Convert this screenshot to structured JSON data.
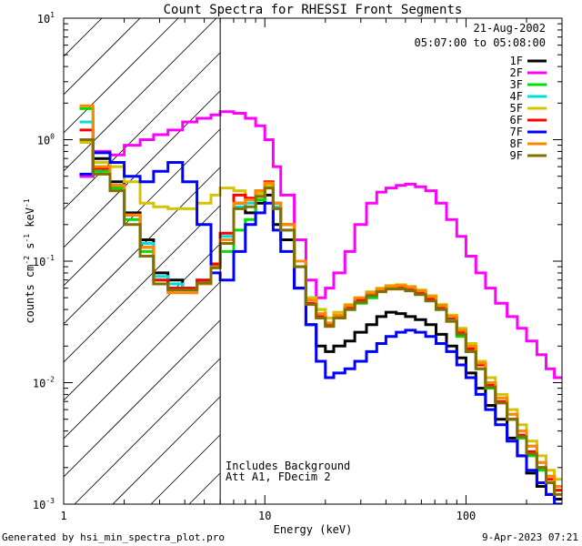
{
  "chart_data": {
    "type": "line",
    "title": "Count Spectra for RHESSI Front Segments",
    "xlabel": "Energy (keV)",
    "ylabel_base": "counts cm",
    "ylabel_parts": {
      "exp1": "-2",
      "mid": " s",
      "exp2": "-1",
      "unit": " keV",
      "exp3": "-1"
    },
    "x_scale": "log",
    "y_scale": "log",
    "xlim": [
      1,
      300
    ],
    "ylim": [
      0.001,
      10
    ],
    "x_ticks": [
      {
        "value": 1,
        "label": "1"
      },
      {
        "value": 10,
        "label": "10"
      },
      {
        "value": 100,
        "label": "100"
      }
    ],
    "y_ticks": [
      {
        "value": 0.001,
        "base": "10",
        "exp": "-3"
      },
      {
        "value": 0.01,
        "base": "10",
        "exp": "-2"
      },
      {
        "value": 0.1,
        "base": "10",
        "exp": "-1"
      },
      {
        "value": 1,
        "base": "10",
        "exp": "0"
      },
      {
        "value": 10,
        "base": "10",
        "exp": "1"
      }
    ],
    "date": "21-Aug-2002",
    "time_range": "05:07:00 to 05:08:00",
    "cutoff_energy": 6,
    "annotations": [
      "Includes Background",
      "Att A1, FDecim 2"
    ],
    "footer_left": "Generated by hsi_min_spectra_plot.pro",
    "footer_right": "9-Apr-2023 07:21",
    "energy_edges": [
      1.2,
      1.4,
      1.7,
      2.0,
      2.4,
      2.8,
      3.3,
      3.9,
      4.6,
      5.4,
      6.0,
      7.0,
      8.0,
      9.0,
      10.0,
      11.0,
      12.0,
      14.0,
      16.0,
      18.0,
      20.0,
      22.0,
      25.0,
      28.0,
      32.0,
      36.0,
      40.0,
      45.0,
      50.0,
      56.0,
      63.0,
      71.0,
      80.0,
      90.0,
      100.0,
      112.0,
      125.0,
      140.0,
      160.0,
      180.0,
      200.0,
      225.0,
      250.0,
      275.0,
      300.0
    ],
    "series": [
      {
        "name": "1F",
        "color": "#000000",
        "values": [
          0.5,
          0.7,
          0.45,
          0.25,
          0.15,
          0.08,
          0.07,
          0.06,
          0.065,
          0.09,
          0.15,
          0.3,
          0.25,
          0.3,
          0.35,
          0.2,
          0.15,
          0.06,
          0.03,
          0.02,
          0.018,
          0.02,
          0.022,
          0.026,
          0.03,
          0.035,
          0.038,
          0.037,
          0.035,
          0.033,
          0.03,
          0.025,
          0.02,
          0.016,
          0.012,
          0.009,
          0.0065,
          0.005,
          0.0035,
          0.0025,
          0.0018,
          0.0014,
          0.0012,
          0.0011
        ]
      },
      {
        "name": "2F",
        "color": "#ff00ff",
        "values": [
          0.5,
          0.8,
          0.75,
          0.9,
          1.0,
          1.1,
          1.2,
          1.4,
          1.5,
          1.6,
          1.7,
          1.65,
          1.5,
          1.3,
          1.0,
          0.6,
          0.35,
          0.15,
          0.07,
          0.05,
          0.06,
          0.08,
          0.12,
          0.2,
          0.3,
          0.37,
          0.4,
          0.42,
          0.43,
          0.41,
          0.38,
          0.3,
          0.22,
          0.16,
          0.11,
          0.08,
          0.06,
          0.045,
          0.035,
          0.028,
          0.022,
          0.017,
          0.013,
          0.011
        ]
      },
      {
        "name": "3F",
        "color": "#00dd00",
        "values": [
          1.8,
          0.55,
          0.4,
          0.22,
          0.12,
          0.07,
          0.06,
          0.06,
          0.07,
          0.09,
          0.12,
          0.18,
          0.22,
          0.32,
          0.4,
          0.3,
          0.2,
          0.1,
          0.05,
          0.04,
          0.03,
          0.035,
          0.04,
          0.045,
          0.05,
          0.058,
          0.062,
          0.062,
          0.06,
          0.055,
          0.048,
          0.04,
          0.032,
          0.024,
          0.018,
          0.013,
          0.009,
          0.007,
          0.005,
          0.0035,
          0.0025,
          0.0019,
          0.0015,
          0.0013
        ]
      },
      {
        "name": "4F",
        "color": "#00dddd",
        "values": [
          1.4,
          0.6,
          0.42,
          0.24,
          0.14,
          0.075,
          0.065,
          0.06,
          0.068,
          0.095,
          0.16,
          0.28,
          0.3,
          0.35,
          0.42,
          0.28,
          0.18,
          0.09,
          0.045,
          0.035,
          0.03,
          0.034,
          0.04,
          0.046,
          0.052,
          0.057,
          0.06,
          0.06,
          0.058,
          0.054,
          0.048,
          0.04,
          0.033,
          0.026,
          0.019,
          0.014,
          0.01,
          0.0075,
          0.0055,
          0.004,
          0.003,
          0.0022,
          0.0017,
          0.0014
        ]
      },
      {
        "name": "5F",
        "color": "#d4c400",
        "values": [
          0.95,
          0.65,
          0.6,
          0.45,
          0.3,
          0.28,
          0.27,
          0.27,
          0.3,
          0.35,
          0.4,
          0.38,
          0.32,
          0.36,
          0.42,
          0.3,
          0.2,
          0.1,
          0.05,
          0.04,
          0.034,
          0.038,
          0.044,
          0.05,
          0.056,
          0.06,
          0.063,
          0.064,
          0.062,
          0.058,
          0.052,
          0.044,
          0.036,
          0.028,
          0.021,
          0.015,
          0.011,
          0.008,
          0.006,
          0.0045,
          0.0033,
          0.0025,
          0.0019,
          0.0016
        ]
      },
      {
        "name": "6F",
        "color": "#ff0000",
        "values": [
          1.2,
          0.58,
          0.42,
          0.24,
          0.13,
          0.07,
          0.06,
          0.06,
          0.07,
          0.095,
          0.17,
          0.35,
          0.33,
          0.38,
          0.45,
          0.3,
          0.2,
          0.1,
          0.045,
          0.035,
          0.03,
          0.035,
          0.042,
          0.048,
          0.054,
          0.058,
          0.061,
          0.061,
          0.059,
          0.055,
          0.049,
          0.041,
          0.034,
          0.026,
          0.019,
          0.014,
          0.0095,
          0.007,
          0.005,
          0.0037,
          0.0027,
          0.002,
          0.0016,
          0.0013
        ]
      },
      {
        "name": "7F",
        "color": "#0000ff",
        "values": [
          0.52,
          0.78,
          0.65,
          0.5,
          0.45,
          0.55,
          0.65,
          0.45,
          0.2,
          0.08,
          0.07,
          0.12,
          0.2,
          0.25,
          0.3,
          0.18,
          0.12,
          0.06,
          0.03,
          0.015,
          0.011,
          0.012,
          0.013,
          0.015,
          0.018,
          0.021,
          0.024,
          0.026,
          0.027,
          0.026,
          0.024,
          0.021,
          0.018,
          0.014,
          0.011,
          0.008,
          0.006,
          0.0045,
          0.0033,
          0.0025,
          0.0019,
          0.0015,
          0.0012,
          0.001
        ]
      },
      {
        "name": "8F",
        "color": "#ff8800",
        "values": [
          1.9,
          0.6,
          0.42,
          0.24,
          0.13,
          0.065,
          0.055,
          0.055,
          0.065,
          0.09,
          0.15,
          0.3,
          0.32,
          0.38,
          0.44,
          0.3,
          0.2,
          0.1,
          0.048,
          0.037,
          0.031,
          0.036,
          0.043,
          0.05,
          0.055,
          0.059,
          0.062,
          0.063,
          0.061,
          0.057,
          0.051,
          0.043,
          0.035,
          0.027,
          0.02,
          0.0145,
          0.01,
          0.0075,
          0.0055,
          0.004,
          0.003,
          0.0022,
          0.0017,
          0.0014
        ]
      },
      {
        "name": "9F",
        "color": "#807000",
        "values": [
          1.0,
          0.52,
          0.38,
          0.2,
          0.11,
          0.065,
          0.058,
          0.058,
          0.066,
          0.088,
          0.14,
          0.27,
          0.28,
          0.34,
          0.4,
          0.27,
          0.18,
          0.09,
          0.044,
          0.034,
          0.029,
          0.034,
          0.04,
          0.046,
          0.052,
          0.056,
          0.059,
          0.059,
          0.057,
          0.053,
          0.047,
          0.04,
          0.032,
          0.025,
          0.018,
          0.013,
          0.0092,
          0.0068,
          0.005,
          0.0036,
          0.0026,
          0.002,
          0.0015,
          0.0012
        ]
      }
    ]
  }
}
